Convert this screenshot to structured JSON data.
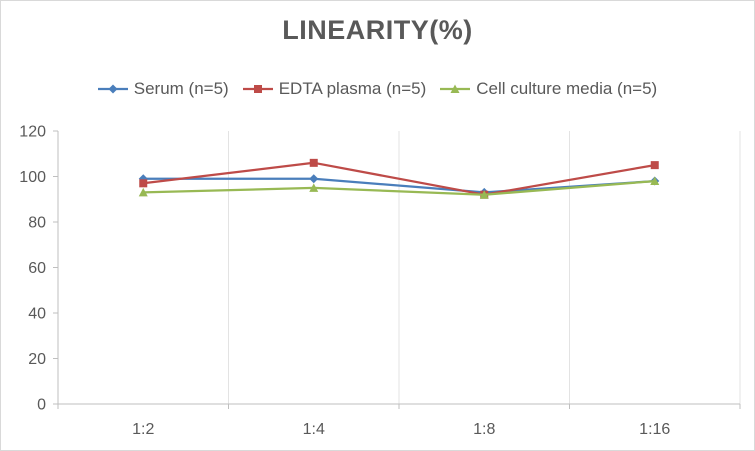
{
  "chart_data": {
    "type": "line",
    "title": "LINEARITY(%)",
    "xlabel": "",
    "ylabel": "",
    "categories": [
      "1:2",
      "1:4",
      "1:8",
      "1:16"
    ],
    "ylim": [
      0,
      120
    ],
    "yticks": [
      0,
      20,
      40,
      60,
      80,
      100,
      120
    ],
    "grid": "vertical",
    "legend": "top",
    "series": [
      {
        "name": "Serum (n=5)",
        "values": [
          99,
          99,
          93,
          98
        ],
        "color": "#4a7ebb",
        "marker": "diamond"
      },
      {
        "name": "EDTA plasma (n=5)",
        "values": [
          97,
          106,
          92,
          105
        ],
        "color": "#be4b48",
        "marker": "square"
      },
      {
        "name": "Cell culture media (n=5)",
        "values": [
          93,
          95,
          92,
          98
        ],
        "color": "#98b954",
        "marker": "triangle"
      }
    ]
  }
}
